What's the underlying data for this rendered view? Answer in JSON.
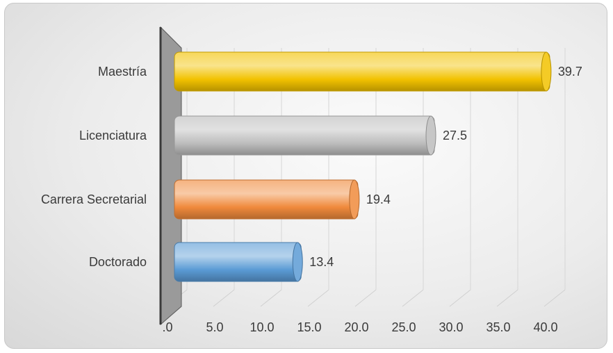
{
  "chart_data": {
    "type": "bar",
    "orientation": "horizontal",
    "style": "3d-cylinder",
    "categories": [
      "Maestría",
      "Licenciatura",
      "Carrera Secretarial",
      "Doctorado"
    ],
    "values": [
      39.7,
      27.5,
      19.4,
      13.4
    ],
    "value_labels": [
      "39.7",
      "27.5",
      "19.4",
      "13.4"
    ],
    "colors": [
      "#f2c200",
      "#bdbdbd",
      "#f08a3c",
      "#5b9bd5"
    ],
    "x_ticks": [
      ".0",
      "5.0",
      "10.0",
      "15.0",
      "20.0",
      "25.0",
      "30.0",
      "35.0",
      "40.0"
    ],
    "xlim": [
      0,
      40
    ],
    "grid": true,
    "legend": "none",
    "title": "",
    "xlabel": "",
    "ylabel": ""
  }
}
